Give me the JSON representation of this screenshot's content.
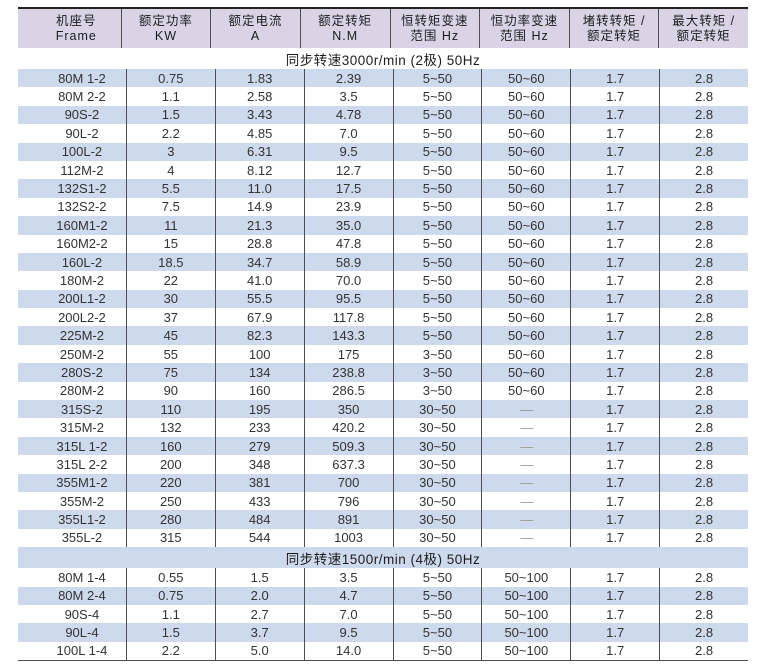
{
  "colors": {
    "header_bg": "#d8d4e6",
    "stripe_blue": "#cdd9ec",
    "stripe_white": "#ffffff",
    "separator": "#4e4e50",
    "top_border": "#232323",
    "bottom_border": "#4e4e50",
    "text": "#333333",
    "dash": "#9a9a9a"
  },
  "table": {
    "columns": [
      {
        "line1": "机座号",
        "line2": "Frame"
      },
      {
        "line1": "额定功率",
        "line2": "KW"
      },
      {
        "line1": "额定电流",
        "line2": "A"
      },
      {
        "line1": "额定转矩",
        "line2": "N.M"
      },
      {
        "line1": "恒转矩变速",
        "line2": "范围 Hz"
      },
      {
        "line1": "恒功率变速",
        "line2": "范围 Hz"
      },
      {
        "line1": "堵转转矩 /",
        "line2": "额定转矩"
      },
      {
        "line1": "最大转矩 /",
        "line2": "额定转矩"
      }
    ],
    "sections": [
      {
        "title": "同步转速3000r/min (2极) 50Hz",
        "rows": [
          [
            "80M 1-2",
            "0.75",
            "1.83",
            "2.39",
            "5~50",
            "50~60",
            "1.7",
            "2.8"
          ],
          [
            "80M 2-2",
            "1.1",
            "2.58",
            "3.5",
            "5~50",
            "50~60",
            "1.7",
            "2.8"
          ],
          [
            "90S-2",
            "1.5",
            "3.43",
            "4.78",
            "5~50",
            "50~60",
            "1.7",
            "2.8"
          ],
          [
            "90L-2",
            "2.2",
            "4.85",
            "7.0",
            "5~50",
            "50~60",
            "1.7",
            "2.8"
          ],
          [
            "100L-2",
            "3",
            "6.31",
            "9.5",
            "5~50",
            "50~60",
            "1.7",
            "2.8"
          ],
          [
            "112M-2",
            "4",
            "8.12",
            "12.7",
            "5~50",
            "50~60",
            "1.7",
            "2.8"
          ],
          [
            "132S1-2",
            "5.5",
            "11.0",
            "17.5",
            "5~50",
            "50~60",
            "1.7",
            "2.8"
          ],
          [
            "132S2-2",
            "7.5",
            "14.9",
            "23.9",
            "5~50",
            "50~60",
            "1.7",
            "2.8"
          ],
          [
            "160M1-2",
            "11",
            "21.3",
            "35.0",
            "5~50",
            "50~60",
            "1.7",
            "2.8"
          ],
          [
            "160M2-2",
            "15",
            "28.8",
            "47.8",
            "5~50",
            "50~60",
            "1.7",
            "2.8"
          ],
          [
            "160L-2",
            "18.5",
            "34.7",
            "58.9",
            "5~50",
            "50~60",
            "1.7",
            "2.8"
          ],
          [
            "180M-2",
            "22",
            "41.0",
            "70.0",
            "5~50",
            "50~60",
            "1.7",
            "2.8"
          ],
          [
            "200L1-2",
            "30",
            "55.5",
            "95.5",
            "5~50",
            "50~60",
            "1.7",
            "2.8"
          ],
          [
            "200L2-2",
            "37",
            "67.9",
            "117.8",
            "5~50",
            "50~60",
            "1.7",
            "2.8"
          ],
          [
            "225M-2",
            "45",
            "82.3",
            "143.3",
            "5~50",
            "50~60",
            "1.7",
            "2.8"
          ],
          [
            "250M-2",
            "55",
            "100",
            "175",
            "3~50",
            "50~60",
            "1.7",
            "2.8"
          ],
          [
            "280S-2",
            "75",
            "134",
            "238.8",
            "3~50",
            "50~60",
            "1.7",
            "2.8"
          ],
          [
            "280M-2",
            "90",
            "160",
            "286.5",
            "3~50",
            "50~60",
            "1.7",
            "2.8"
          ],
          [
            "315S-2",
            "110",
            "195",
            "350",
            "30~50",
            "—",
            "1.7",
            "2.8"
          ],
          [
            "315M-2",
            "132",
            "233",
            "420.2",
            "30~50",
            "—",
            "1.7",
            "2.8"
          ],
          [
            "315L 1-2",
            "160",
            "279",
            "509.3",
            "30~50",
            "—",
            "1.7",
            "2.8"
          ],
          [
            "315L 2-2",
            "200",
            "348",
            "637.3",
            "30~50",
            "—",
            "1.7",
            "2.8"
          ],
          [
            "355M1-2",
            "220",
            "381",
            "700",
            "30~50",
            "—",
            "1.7",
            "2.8"
          ],
          [
            "355M-2",
            "250",
            "433",
            "796",
            "30~50",
            "—",
            "1.7",
            "2.8"
          ],
          [
            "355L1-2",
            "280",
            "484",
            "891",
            "30~50",
            "—",
            "1.7",
            "2.8"
          ],
          [
            "355L-2",
            "315",
            "544",
            "1003",
            "30~50",
            "—",
            "1.7",
            "2.8"
          ]
        ]
      },
      {
        "title": "同步转速1500r/min (4极) 50Hz",
        "rows": [
          [
            "80M 1-4",
            "0.55",
            "1.5",
            "3.5",
            "5~50",
            "50~100",
            "1.7",
            "2.8"
          ],
          [
            "80M 2-4",
            "0.75",
            "2.0",
            "4.7",
            "5~50",
            "50~100",
            "1.7",
            "2.8"
          ],
          [
            "90S-4",
            "1.1",
            "2.7",
            "7.0",
            "5~50",
            "50~100",
            "1.7",
            "2.8"
          ],
          [
            "90L-4",
            "1.5",
            "3.7",
            "9.5",
            "5~50",
            "50~100",
            "1.7",
            "2.8"
          ],
          [
            "100L 1-4",
            "2.2",
            "5.0",
            "14.0",
            "5~50",
            "50~100",
            "1.7",
            "2.8"
          ]
        ]
      }
    ]
  }
}
